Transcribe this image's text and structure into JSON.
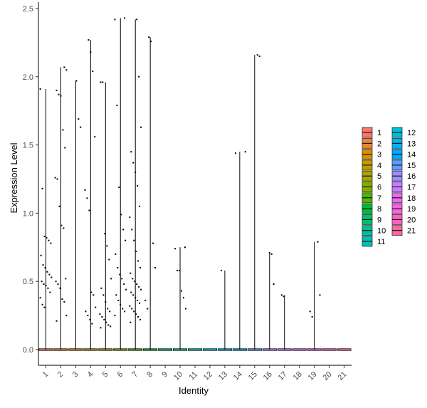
{
  "chart_data": {
    "type": "violin",
    "xlabel": "Identity",
    "ylabel": "Expression Level",
    "categories": [
      "1",
      "2",
      "3",
      "4",
      "5",
      "6",
      "7",
      "8",
      "9",
      "10",
      "11",
      "12",
      "13",
      "14",
      "15",
      "16",
      "17",
      "18",
      "19",
      "20",
      "21"
    ],
    "ylim": [
      -0.12,
      2.55
    ],
    "yticks": [
      0.0,
      0.5,
      1.0,
      1.5,
      2.0,
      2.5
    ],
    "ytick_labels": [
      "0.0",
      "0.5",
      "1.0",
      "1.5",
      "2.0",
      "2.5"
    ],
    "max_values": [
      1.91,
      2.07,
      1.97,
      2.27,
      1.96,
      2.43,
      2.42,
      2.29,
      0.0,
      0.75,
      0.0,
      0.0,
      0.58,
      1.45,
      2.16,
      0.71,
      0.4,
      0.0,
      0.79,
      0.0,
      0.0
    ],
    "points": [
      [
        1.91,
        1.18,
        0.83,
        0.82,
        0.8,
        0.78,
        0.69,
        0.62,
        0.6,
        0.57,
        0.55,
        0.53,
        0.5,
        0.48,
        0.47,
        0.45,
        0.42,
        0.38,
        0.33,
        0.31
      ],
      [
        2.07,
        2.05,
        1.9,
        1.87,
        1.86,
        1.61,
        1.48,
        1.26,
        1.25,
        1.05,
        0.91,
        0.89,
        0.52,
        0.5,
        0.48,
        0.45,
        0.37,
        0.35,
        0.25,
        0.21
      ],
      [
        1.97,
        1.69,
        1.63
      ],
      [
        2.27,
        2.18,
        2.04,
        1.56,
        1.17,
        1.11,
        1.02,
        0.42,
        0.4,
        0.31,
        0.28,
        0.25,
        0.22,
        0.19
      ],
      [
        1.96,
        1.96,
        0.85,
        0.76,
        0.66,
        0.52,
        0.45,
        0.4,
        0.35,
        0.3,
        0.28,
        0.26,
        0.24,
        0.22,
        0.2,
        0.18,
        0.17,
        0.16
      ],
      [
        2.43,
        2.42,
        1.79,
        1.19,
        0.99,
        0.88,
        0.8,
        0.7,
        0.6,
        0.55,
        0.52,
        0.48,
        0.44,
        0.4,
        0.36,
        0.33,
        0.3,
        0.28,
        0.25
      ],
      [
        2.42,
        2.0,
        1.63,
        1.45,
        1.37,
        1.3,
        1.2,
        1.05,
        0.97,
        0.88,
        0.8,
        0.72,
        0.65,
        0.6,
        0.56,
        0.52,
        0.5,
        0.48,
        0.46,
        0.44,
        0.42,
        0.4,
        0.38,
        0.36,
        0.34,
        0.32,
        0.3,
        0.28,
        0.26,
        0.24,
        0.22,
        0.2
      ],
      [
        2.29,
        2.26,
        0.78,
        0.6,
        0.36,
        0.3
      ],
      [],
      [
        0.75,
        0.74,
        0.58,
        0.58,
        0.43,
        0.38,
        0.3
      ],
      [],
      [],
      [
        0.58
      ],
      [
        1.45,
        1.44
      ],
      [
        2.16,
        2.15
      ],
      [
        0.71,
        0.7,
        0.48
      ],
      [
        0.4,
        0.39
      ],
      [],
      [
        0.79,
        0.4,
        0.28,
        0.24
      ],
      [],
      []
    ],
    "fill_colors": [
      "#F8766D",
      "#EB8335",
      "#DA8F00",
      "#C49A00",
      "#A9A400",
      "#86AC00",
      "#53B400",
      "#00BA38",
      "#00BE6C",
      "#00C094",
      "#00C0B8",
      "#00BDD7",
      "#00B4EF",
      "#00A8FF",
      "#619CFF",
      "#9F8CFF",
      "#CB7BFF",
      "#E76BF3",
      "#F763E0",
      "#FF61C3",
      "#FF67A4"
    ],
    "legend": {
      "placement": "right",
      "labels": [
        "1",
        "2",
        "3",
        "4",
        "5",
        "6",
        "7",
        "8",
        "9",
        "10",
        "11",
        "12",
        "13",
        "14",
        "15",
        "16",
        "17",
        "18",
        "19",
        "20",
        "21"
      ]
    }
  }
}
